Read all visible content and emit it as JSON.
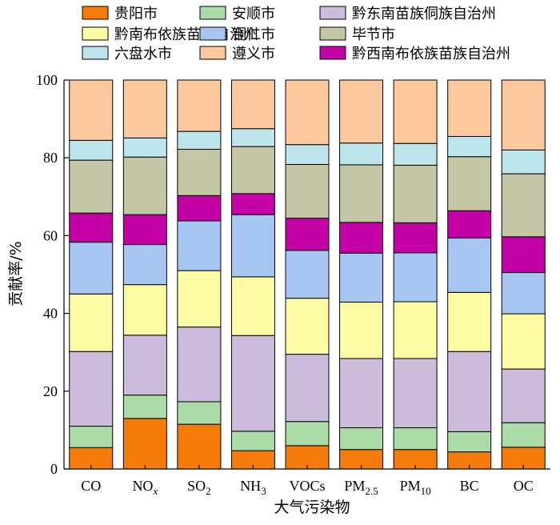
{
  "chart_data": {
    "type": "bar",
    "stacked": true,
    "xlabel": "大气污染物",
    "ylabel": "贡献率/%",
    "ylim": [
      0,
      100
    ],
    "yticks": [
      0,
      20,
      40,
      60,
      80,
      100
    ],
    "grid": false,
    "legend_position": "top",
    "categories": [
      "CO",
      "NOx",
      "SO2",
      "NH3",
      "VOCs",
      "PM2.5",
      "PM10",
      "BC",
      "OC"
    ],
    "category_labels": [
      {
        "base": "CO",
        "sub": "",
        "italic_sub": false
      },
      {
        "base": "NO",
        "sub": "x",
        "italic_sub": true
      },
      {
        "base": "SO",
        "sub": "2",
        "italic_sub": false
      },
      {
        "base": "NH",
        "sub": "3",
        "italic_sub": false
      },
      {
        "base": "VOCs",
        "sub": "",
        "italic_sub": false
      },
      {
        "base": "PM",
        "sub": "2.5",
        "italic_sub": false
      },
      {
        "base": "PM",
        "sub": "10",
        "italic_sub": false
      },
      {
        "base": "BC",
        "sub": "",
        "italic_sub": false
      },
      {
        "base": "OC",
        "sub": "",
        "italic_sub": false
      }
    ],
    "series": [
      {
        "name": "贵阳市",
        "color": "#f57c0a",
        "values": [
          5.5,
          13.0,
          11.5,
          4.7,
          6.0,
          5.0,
          5.0,
          4.4,
          5.6
        ]
      },
      {
        "name": "安顺市",
        "color": "#abdba6",
        "values": [
          5.5,
          6.0,
          5.8,
          5.0,
          6.2,
          5.6,
          5.6,
          5.2,
          6.3
        ]
      },
      {
        "name": "黔东南苗族侗族自治州",
        "color": "#cdbbdc",
        "values": [
          19.2,
          15.4,
          19.2,
          24.6,
          17.3,
          17.8,
          17.8,
          20.6,
          13.8
        ]
      },
      {
        "name": "黔南布依族苗族自治州",
        "color": "#fdfca5",
        "values": [
          14.8,
          13.0,
          14.5,
          15.1,
          14.4,
          14.5,
          14.6,
          15.2,
          14.2
        ]
      },
      {
        "name": "铜仁市",
        "color": "#a8c6f2",
        "values": [
          13.3,
          10.3,
          12.8,
          16.0,
          12.3,
          12.6,
          12.6,
          14.0,
          10.6
        ]
      },
      {
        "name": "毕节市",
        "color": "#c4c6a5",
        "values": [
          13.6,
          14.8,
          11.9,
          12.1,
          13.8,
          14.8,
          14.8,
          13.9,
          16.2
        ]
      },
      {
        "name": "六盘水市",
        "color": "#bde6ec",
        "values": [
          5.1,
          4.9,
          4.6,
          4.6,
          5.1,
          5.6,
          5.6,
          5.2,
          6.1
        ]
      },
      {
        "name": "遵义市",
        "color": "#fcc89e",
        "values": [
          15.5,
          14.9,
          13.2,
          12.5,
          16.6,
          16.2,
          16.3,
          14.5,
          18.0
        ]
      },
      {
        "name": "黔西南布依族苗族自治州",
        "color": "#c401a6",
        "values": [
          7.5,
          7.7,
          6.5,
          5.4,
          8.3,
          7.9,
          7.7,
          7.0,
          9.2
        ]
      }
    ],
    "stack_order": [
      0,
      1,
      2,
      3,
      4,
      8,
      5,
      6,
      7
    ],
    "legend_order": [
      0,
      1,
      2,
      3,
      4,
      5,
      6,
      7,
      8
    ]
  }
}
